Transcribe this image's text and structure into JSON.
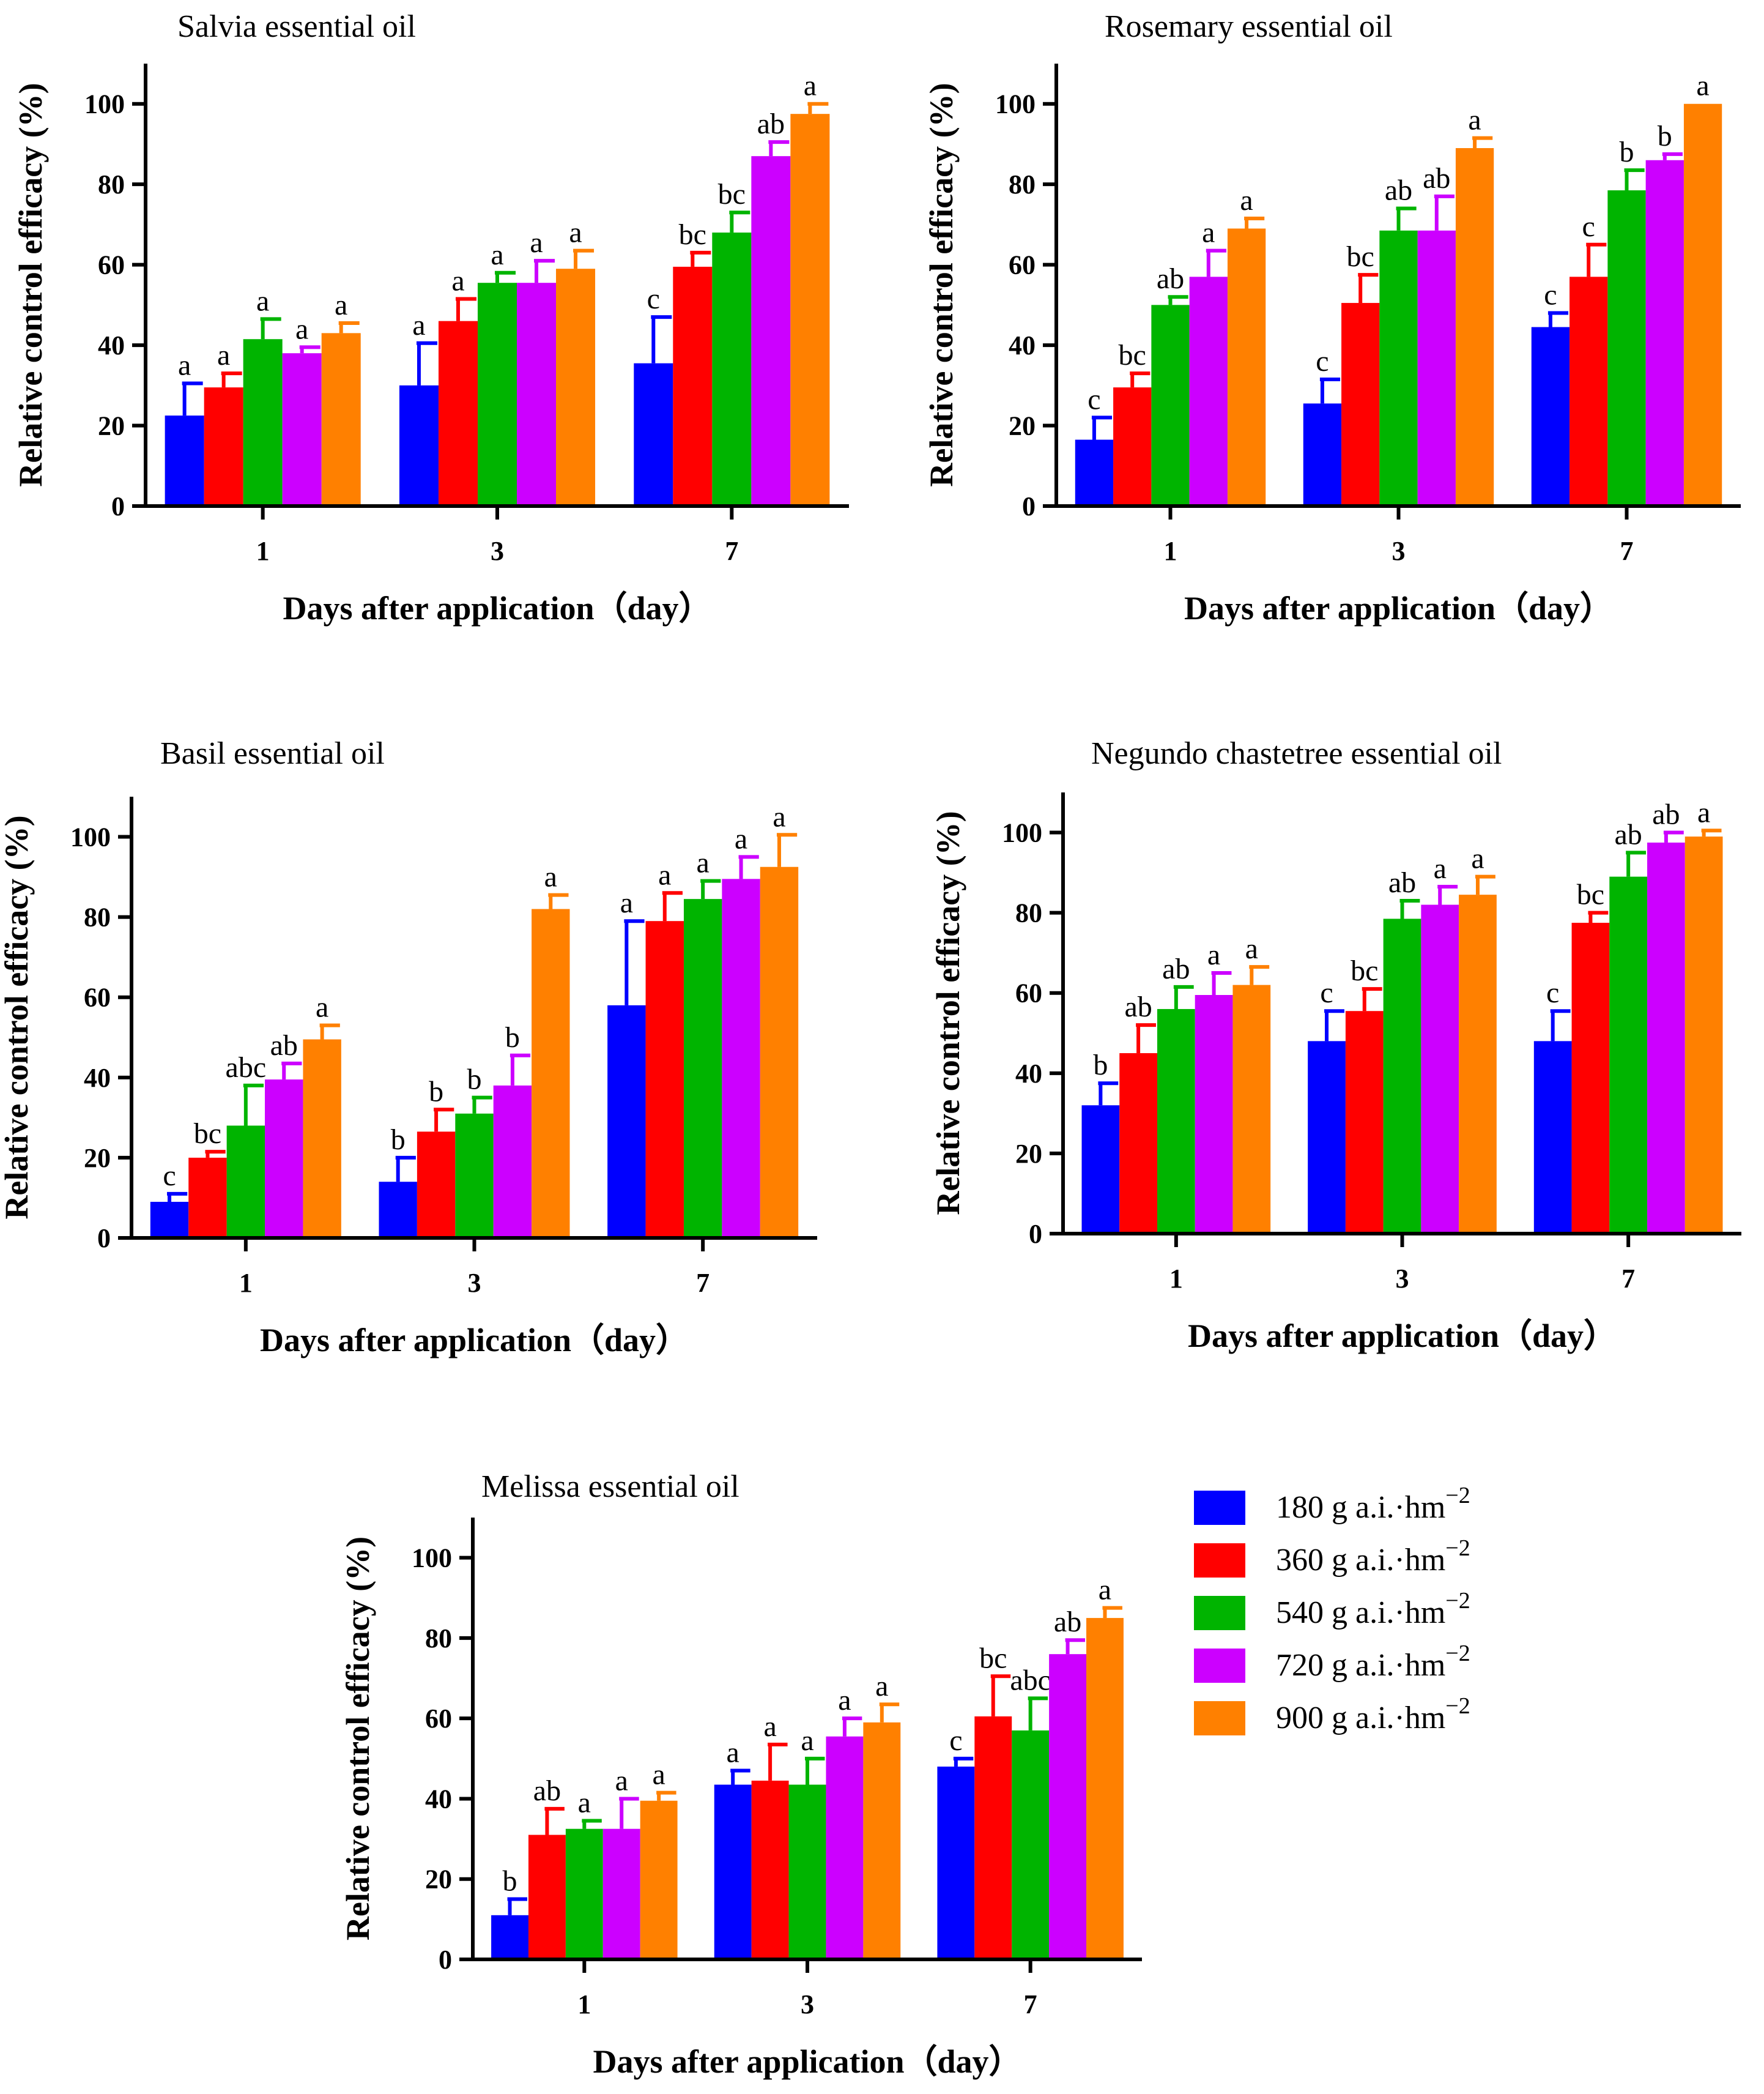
{
  "figure": {
    "y_axis_label": "Relative control efficacy (%)",
    "x_axis_label": "Days after application（day）"
  },
  "legend": {
    "items": [
      {
        "label": "180 g a.i.·hm",
        "sup": "−2",
        "color": "#0000ff"
      },
      {
        "label": "360 g a.i.·hm",
        "sup": "−2",
        "color": "#ff0000"
      },
      {
        "label": "540 g a.i.·hm",
        "sup": "−2",
        "color": "#00b400"
      },
      {
        "label": "720 g a.i.·hm",
        "sup": "−2",
        "color": "#cc00ff"
      },
      {
        "label": "900 g a.i.·hm",
        "sup": "−2",
        "color": "#ff8000"
      }
    ]
  },
  "chart_data": [
    {
      "type": "bar",
      "title": "Salvia essential oil",
      "xlabel": "Days after application（day）",
      "ylabel": "Relative control efficacy (%)",
      "ylim": [
        0,
        110
      ],
      "yticks": [
        0,
        20,
        40,
        60,
        80,
        100
      ],
      "categories": [
        "1",
        "3",
        "7"
      ],
      "series": [
        {
          "name": "180 g a.i.·hm−2",
          "values": [
            22.5,
            30,
            35.5
          ],
          "errors": [
            8,
            10.5,
            11.5
          ],
          "letters": [
            "a",
            "a",
            "c"
          ]
        },
        {
          "name": "360 g a.i.·hm−2",
          "values": [
            29.5,
            46,
            59.5
          ],
          "errors": [
            3.5,
            5.5,
            3.5
          ],
          "letters": [
            "a",
            "a",
            "bc"
          ]
        },
        {
          "name": "540 g a.i.·hm−2",
          "values": [
            41.5,
            55.5,
            68
          ],
          "errors": [
            5,
            2.5,
            5
          ],
          "letters": [
            "a",
            "a",
            "bc"
          ]
        },
        {
          "name": "720 g a.i.·hm−2",
          "values": [
            38,
            55.5,
            87
          ],
          "errors": [
            1.5,
            5.5,
            3.5
          ],
          "letters": [
            "a",
            "a",
            "ab"
          ]
        },
        {
          "name": "900 g a.i.·hm−2",
          "values": [
            43,
            59,
            97.5
          ],
          "errors": [
            2.5,
            4.5,
            2.5
          ],
          "letters": [
            "a",
            "a",
            "a"
          ]
        }
      ]
    },
    {
      "type": "bar",
      "title": "Rosemary essential oil",
      "xlabel": "Days after application（day）",
      "ylabel": "Relative control efficacy (%)",
      "ylim": [
        0,
        110
      ],
      "yticks": [
        0,
        20,
        40,
        60,
        80,
        100
      ],
      "categories": [
        "1",
        "3",
        "7"
      ],
      "series": [
        {
          "name": "180 g a.i.·hm−2",
          "values": [
            16.5,
            25.5,
            44.5
          ],
          "errors": [
            5.5,
            6,
            3.5
          ],
          "letters": [
            "c",
            "c",
            "c"
          ]
        },
        {
          "name": "360 g a.i.·hm−2",
          "values": [
            29.5,
            50.5,
            57
          ],
          "errors": [
            3.5,
            7,
            8
          ],
          "letters": [
            "bc",
            "bc",
            "c"
          ]
        },
        {
          "name": "540 g a.i.·hm−2",
          "values": [
            50,
            68.5,
            78.5
          ],
          "errors": [
            2,
            5.5,
            5
          ],
          "letters": [
            "ab",
            "ab",
            "b"
          ]
        },
        {
          "name": "720 g a.i.·hm−2",
          "values": [
            57,
            68.5,
            86
          ],
          "errors": [
            6.5,
            8.5,
            1.5
          ],
          "letters": [
            "a",
            "ab",
            "b"
          ]
        },
        {
          "name": "900 g a.i.·hm−2",
          "values": [
            69,
            89,
            100
          ],
          "errors": [
            2.5,
            2.5,
            0
          ],
          "letters": [
            "a",
            "a",
            "a"
          ]
        }
      ]
    },
    {
      "type": "bar",
      "title": "Basil essential oil",
      "xlabel": "Days after application（day）",
      "ylabel": "Relative control efficacy (%)",
      "ylim": [
        0,
        110
      ],
      "yticks": [
        0,
        20,
        40,
        60,
        80,
        100
      ],
      "categories": [
        "1",
        "3",
        "7"
      ],
      "series": [
        {
          "name": "180 g a.i.·hm−2",
          "values": [
            9,
            14,
            58
          ],
          "errors": [
            2,
            6,
            21
          ],
          "letters": [
            "c",
            "b",
            "a"
          ]
        },
        {
          "name": "360 g a.i.·hm−2",
          "values": [
            20,
            26.5,
            79
          ],
          "errors": [
            1.5,
            5.5,
            7
          ],
          "letters": [
            "bc",
            "b",
            "a"
          ]
        },
        {
          "name": "540 g a.i.·hm−2",
          "values": [
            28,
            31,
            84.5
          ],
          "errors": [
            10,
            4,
            4.5
          ],
          "letters": [
            "abc",
            "b",
            "a"
          ]
        },
        {
          "name": "720 g a.i.·hm−2",
          "values": [
            39.5,
            38,
            89.5
          ],
          "errors": [
            4,
            7.5,
            5.5
          ],
          "letters": [
            "ab",
            "b",
            "a"
          ]
        },
        {
          "name": "900 g a.i.·hm−2",
          "values": [
            49.5,
            82,
            92.5
          ],
          "errors": [
            3.5,
            3.5,
            8
          ],
          "letters": [
            "a",
            "a",
            "a"
          ]
        }
      ]
    },
    {
      "type": "bar",
      "title": "Negundo chastetree essential oil",
      "xlabel": "Days after application（day）",
      "ylabel": "Relative control efficacy (%)",
      "ylim": [
        0,
        110
      ],
      "yticks": [
        0,
        20,
        40,
        60,
        80,
        100
      ],
      "categories": [
        "1",
        "3",
        "7"
      ],
      "series": [
        {
          "name": "180 g a.i.·hm−2",
          "values": [
            32,
            48,
            48
          ],
          "errors": [
            5.5,
            7.5,
            7.5
          ],
          "letters": [
            "b",
            "c",
            "c"
          ]
        },
        {
          "name": "360 g a.i.·hm−2",
          "values": [
            45,
            55.5,
            77.5
          ],
          "errors": [
            7,
            5.5,
            2.5
          ],
          "letters": [
            "ab",
            "bc",
            "bc"
          ]
        },
        {
          "name": "540 g a.i.·hm−2",
          "values": [
            56,
            78.5,
            89
          ],
          "errors": [
            5.5,
            4.5,
            6
          ],
          "letters": [
            "ab",
            "ab",
            "ab"
          ]
        },
        {
          "name": "720 g a.i.·hm−2",
          "values": [
            59.5,
            82,
            97.5
          ],
          "errors": [
            5.5,
            4.5,
            2.5
          ],
          "letters": [
            "a",
            "a",
            "ab"
          ]
        },
        {
          "name": "900 g a.i.·hm−2",
          "values": [
            62,
            84.5,
            99
          ],
          "errors": [
            4.5,
            4.5,
            1.5
          ],
          "letters": [
            "a",
            "a",
            "a"
          ]
        }
      ]
    },
    {
      "type": "bar",
      "title": "Melissa essential oil",
      "xlabel": "Days after application（day）",
      "ylabel": "Relative control efficacy (%)",
      "ylim": [
        0,
        110
      ],
      "yticks": [
        0,
        20,
        40,
        60,
        80,
        100
      ],
      "categories": [
        "1",
        "3",
        "7"
      ],
      "series": [
        {
          "name": "180 g a.i.·hm−2",
          "values": [
            11,
            43.5,
            48
          ],
          "errors": [
            4,
            3.5,
            2
          ],
          "letters": [
            "b",
            "a",
            "c"
          ]
        },
        {
          "name": "360 g a.i.·hm−2",
          "values": [
            31,
            44.5,
            60.5
          ],
          "errors": [
            6.5,
            9,
            10
          ],
          "letters": [
            "ab",
            "a",
            "bc"
          ]
        },
        {
          "name": "540 g a.i.·hm−2",
          "values": [
            32.5,
            43.5,
            57
          ],
          "errors": [
            2,
            6.5,
            8
          ],
          "letters": [
            "a",
            "a",
            "abc"
          ]
        },
        {
          "name": "720 g a.i.·hm−2",
          "values": [
            32.5,
            55.5,
            76
          ],
          "errors": [
            7.5,
            4.5,
            3.5
          ],
          "letters": [
            "a",
            "a",
            "ab"
          ]
        },
        {
          "name": "900 g a.i.·hm−2",
          "values": [
            39.5,
            59,
            85
          ],
          "errors": [
            2,
            4.5,
            2.5
          ],
          "letters": [
            "a",
            "a",
            "a"
          ]
        }
      ]
    }
  ]
}
